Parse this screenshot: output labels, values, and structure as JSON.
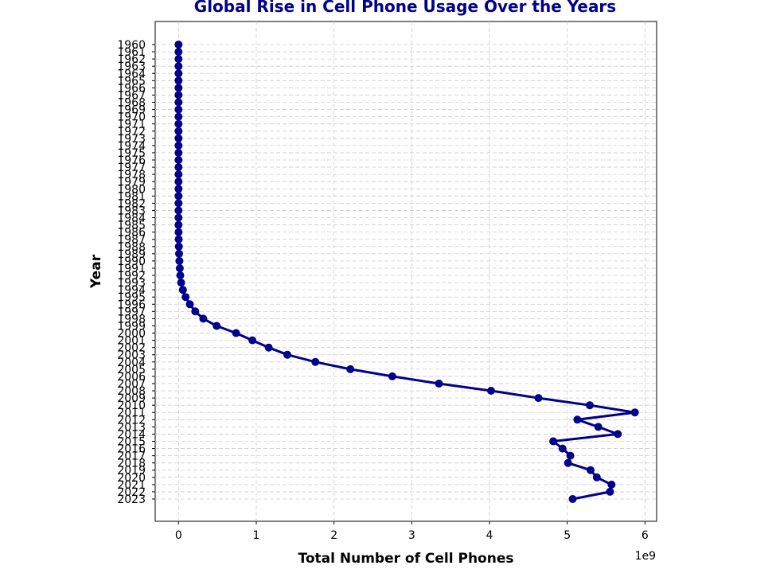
{
  "chart_data": {
    "type": "line",
    "title": "Global Rise in Cell Phone Usage Over the Years",
    "xlabel": "Total Number of Cell Phones",
    "ylabel": "Year",
    "x_offset_label": "1e9",
    "xlim": [
      -300000000,
      6150000000
    ],
    "x_ticks": [
      0,
      1000000000,
      2000000000,
      3000000000,
      4000000000,
      5000000000,
      6000000000
    ],
    "x_tick_labels": [
      "0",
      "1",
      "2",
      "3",
      "4",
      "5",
      "6"
    ],
    "grid": true,
    "colors": {
      "line": "#00008b",
      "title": "#00008b",
      "grid": "#cccccc"
    },
    "series": [
      {
        "points": [
          {
            "year": "1960",
            "value": 0
          },
          {
            "year": "1961",
            "value": 0
          },
          {
            "year": "1962",
            "value": 0
          },
          {
            "year": "1963",
            "value": 0
          },
          {
            "year": "1964",
            "value": 0
          },
          {
            "year": "1965",
            "value": 0
          },
          {
            "year": "1966",
            "value": 0
          },
          {
            "year": "1967",
            "value": 0
          },
          {
            "year": "1968",
            "value": 0
          },
          {
            "year": "1969",
            "value": 0
          },
          {
            "year": "1970",
            "value": 0
          },
          {
            "year": "1971",
            "value": 0
          },
          {
            "year": "1972",
            "value": 0
          },
          {
            "year": "1973",
            "value": 0
          },
          {
            "year": "1974",
            "value": 0
          },
          {
            "year": "1975",
            "value": 0
          },
          {
            "year": "1976",
            "value": 0
          },
          {
            "year": "1977",
            "value": 0
          },
          {
            "year": "1978",
            "value": 0
          },
          {
            "year": "1979",
            "value": 0
          },
          {
            "year": "1980",
            "value": 0
          },
          {
            "year": "1981",
            "value": 0
          },
          {
            "year": "1982",
            "value": 0
          },
          {
            "year": "1983",
            "value": 0
          },
          {
            "year": "1984",
            "value": 0
          },
          {
            "year": "1985",
            "value": 0
          },
          {
            "year": "1986",
            "value": 1000000
          },
          {
            "year": "1987",
            "value": 2000000
          },
          {
            "year": "1988",
            "value": 4000000
          },
          {
            "year": "1989",
            "value": 7000000
          },
          {
            "year": "1990",
            "value": 11000000
          },
          {
            "year": "1991",
            "value": 16000000
          },
          {
            "year": "1992",
            "value": 23000000
          },
          {
            "year": "1993",
            "value": 34000000
          },
          {
            "year": "1994",
            "value": 56000000
          },
          {
            "year": "1995",
            "value": 91000000
          },
          {
            "year": "1996",
            "value": 145000000
          },
          {
            "year": "1997",
            "value": 215000000
          },
          {
            "year": "1998",
            "value": 318000000
          },
          {
            "year": "1999",
            "value": 490000000
          },
          {
            "year": "2000",
            "value": 740000000
          },
          {
            "year": "2001",
            "value": 950000000
          },
          {
            "year": "2002",
            "value": 1160000000
          },
          {
            "year": "2003",
            "value": 1400000000
          },
          {
            "year": "2004",
            "value": 1760000000
          },
          {
            "year": "2005",
            "value": 2210000000
          },
          {
            "year": "2006",
            "value": 2750000000
          },
          {
            "year": "2007",
            "value": 3350000000
          },
          {
            "year": "2008",
            "value": 4020000000
          },
          {
            "year": "2009",
            "value": 4630000000
          },
          {
            "year": "2010",
            "value": 5290000000
          },
          {
            "year": "2011",
            "value": 5870000000
          },
          {
            "year": "2012",
            "value": 5130000000
          },
          {
            "year": "2013",
            "value": 5400000000
          },
          {
            "year": "2014",
            "value": 5650000000
          },
          {
            "year": "2015",
            "value": 4820000000
          },
          {
            "year": "2016",
            "value": 4940000000
          },
          {
            "year": "2017",
            "value": 5040000000
          },
          {
            "year": "2018",
            "value": 5010000000
          },
          {
            "year": "2019",
            "value": 5300000000
          },
          {
            "year": "2020",
            "value": 5380000000
          },
          {
            "year": "2021",
            "value": 5570000000
          },
          {
            "year": "2022",
            "value": 5550000000
          },
          {
            "year": "2023",
            "value": 5070000000
          }
        ]
      }
    ]
  }
}
